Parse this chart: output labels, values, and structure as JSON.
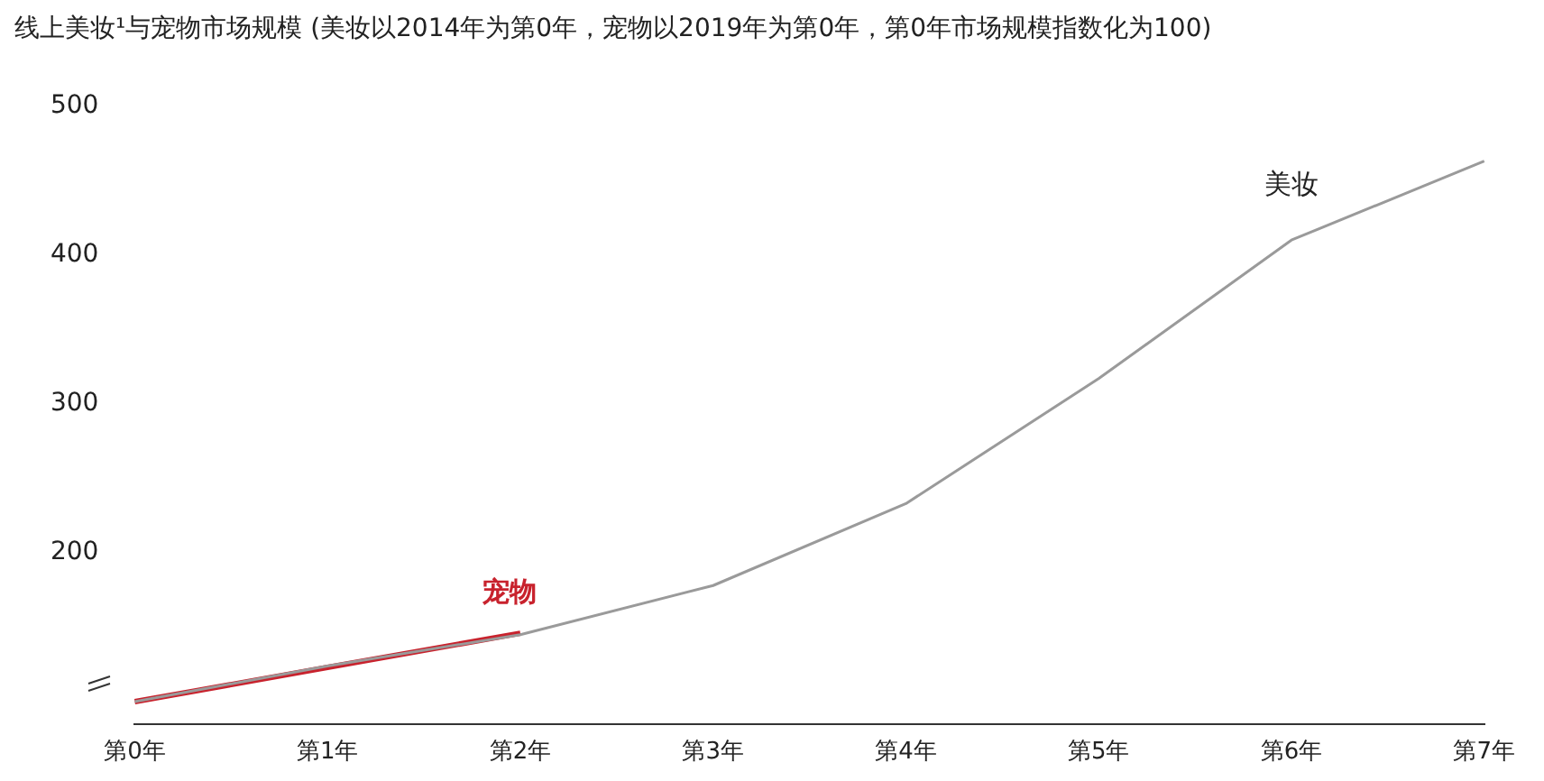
{
  "chart_data": {
    "type": "line",
    "title": "线上美妆¹与宠物市场规模 (美妆以2014年为第0年，宠物以2019年为第0年，第0年市场规模指数化为100)",
    "categories": [
      "第0年",
      "第1年",
      "第2年",
      "第3年",
      "第4年",
      "第5年",
      "第6年",
      "第7年"
    ],
    "series": [
      {
        "name": "美妆",
        "color": "#9a9a9a",
        "values": [
          100,
          124,
          145,
          178,
          233,
          317,
          410,
          463
        ]
      },
      {
        "name": "宠物",
        "color": "#c8222d",
        "values": [
          100,
          123,
          146,
          null,
          null,
          null,
          null,
          null
        ]
      }
    ],
    "ylim": [
      85,
      500
    ],
    "yticks": [
      200,
      300,
      400,
      500
    ],
    "grid": false,
    "legend": false,
    "marker": "none",
    "line_style": "solid"
  }
}
